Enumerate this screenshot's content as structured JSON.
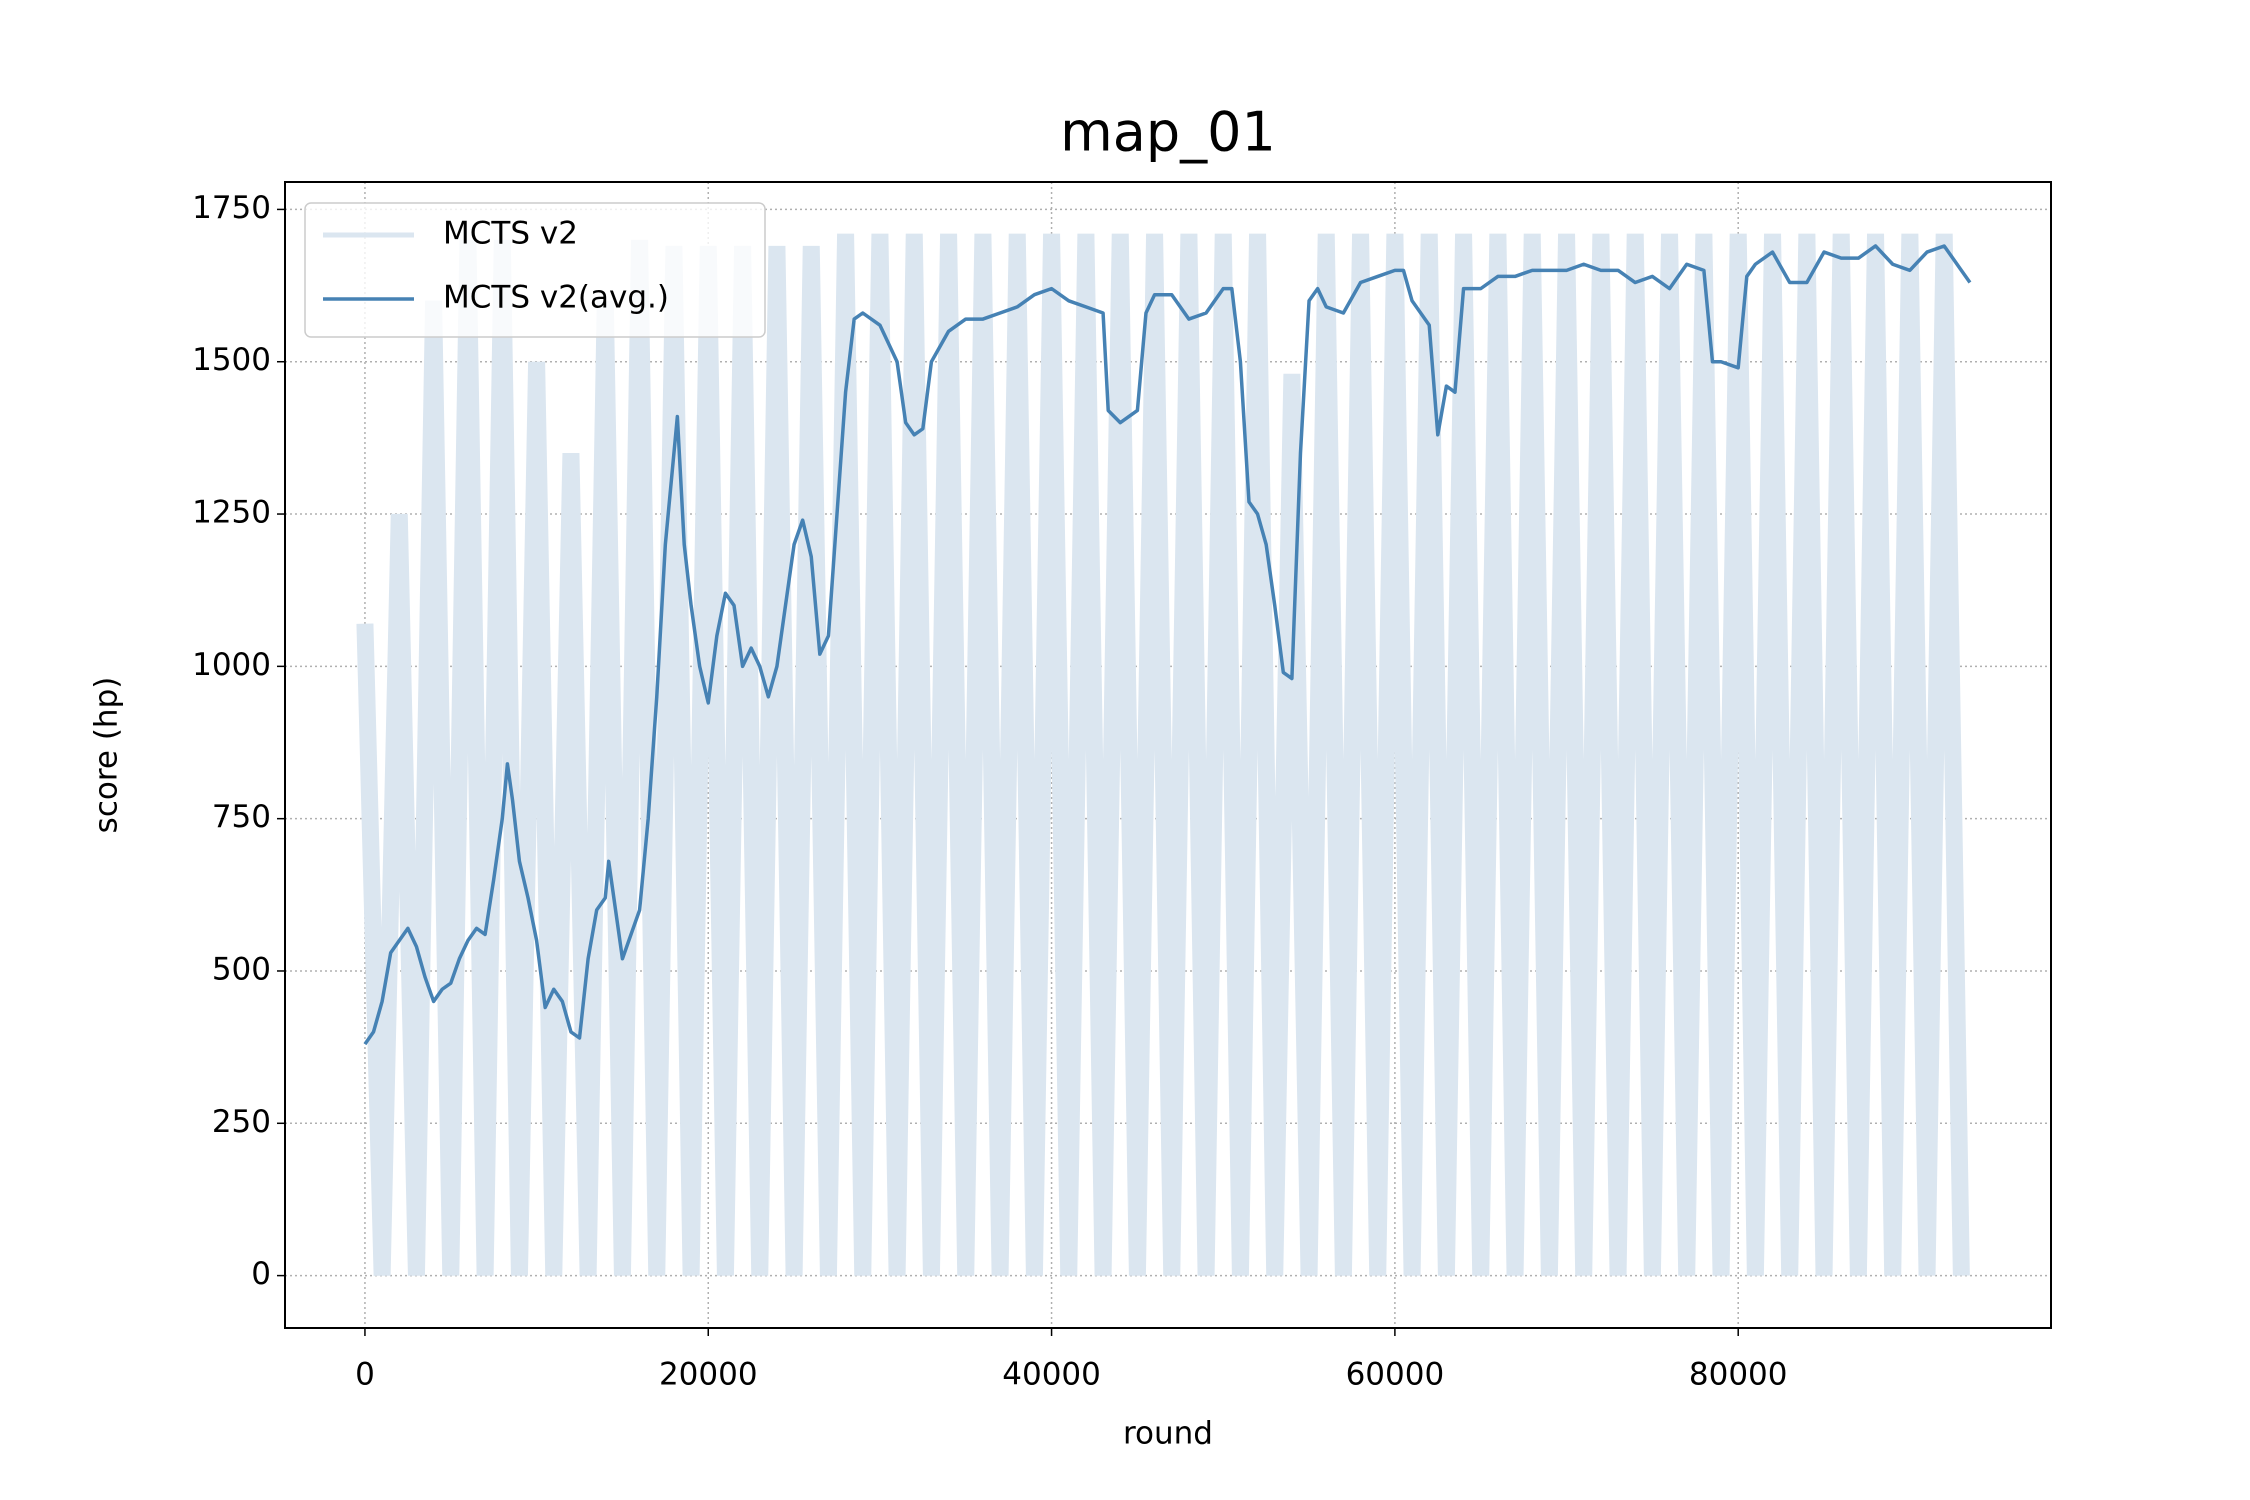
{
  "chart_data": {
    "type": "line",
    "title": "map_01",
    "title_color": "#0000ff",
    "x_label": "round",
    "y_label": "score (hp)",
    "xlim": [
      -4657,
      98222
    ],
    "ylim": [
      -86,
      1795
    ],
    "xticks": [
      0,
      20000,
      40000,
      60000,
      80000
    ],
    "yticks": [
      0,
      250,
      500,
      750,
      1000,
      1250,
      1500,
      1750
    ],
    "grid": true,
    "legend": "upper left",
    "series": [
      {
        "name": "MCTS v2",
        "color": "#dbe6f0",
        "x": [
          0,
          1000,
          2000,
          3000,
          4000,
          5000,
          6000,
          7000,
          8000,
          9000,
          10000,
          11000,
          12000,
          13000,
          14000,
          15000,
          16000,
          17000,
          18000,
          19000,
          20000,
          21000,
          22000,
          23000,
          24000,
          25000,
          26000,
          27000,
          28000,
          29000,
          30000,
          31000,
          32000,
          33000,
          34000,
          35000,
          36000,
          37000,
          38000,
          39000,
          40000,
          41000,
          42000,
          43000,
          44000,
          45000,
          46000,
          47000,
          48000,
          49000,
          50000,
          51000,
          52000,
          53000,
          54000,
          55000,
          56000,
          57000,
          58000,
          59000,
          60000,
          61000,
          62000,
          63000,
          64000,
          65000,
          66000,
          67000,
          68000,
          69000,
          70000,
          71000,
          72000,
          73000,
          74000,
          75000,
          76000,
          77000,
          78000,
          79000,
          80000,
          81000,
          82000,
          83000,
          84000,
          85000,
          86000,
          87000,
          88000,
          89000,
          90000,
          91000,
          92000,
          93000
        ],
        "values": [
          1070,
          0,
          1250,
          0,
          1600,
          0,
          1700,
          0,
          1700,
          0,
          1500,
          0,
          1350,
          0,
          1600,
          0,
          1700,
          0,
          1690,
          0,
          1690,
          0,
          1690,
          0,
          1690,
          0,
          1690,
          0,
          1710,
          0,
          1710,
          0,
          1710,
          0,
          1710,
          0,
          1710,
          0,
          1710,
          0,
          1710,
          0,
          1710,
          0,
          1710,
          0,
          1710,
          0,
          1710,
          0,
          1710,
          0,
          1710,
          0,
          1480,
          0,
          1710,
          0,
          1710,
          0,
          1710,
          0,
          1710,
          0,
          1710,
          0,
          1710,
          0,
          1710,
          0,
          1710,
          0,
          1710,
          0,
          1710,
          0,
          1710,
          0,
          1710,
          0,
          1710,
          0,
          1710,
          0,
          1710,
          0,
          1710,
          0,
          1710,
          0,
          1710,
          0,
          1710,
          0
        ]
      },
      {
        "name": "MCTS v2(avg.)",
        "color": "#4682b4",
        "x": [
          0,
          500,
          1000,
          1500,
          2000,
          2500,
          3000,
          3500,
          4000,
          4500,
          5000,
          5500,
          6000,
          6500,
          7000,
          7500,
          8000,
          8300,
          8600,
          9000,
          9500,
          10000,
          10500,
          11000,
          11500,
          12000,
          12500,
          13000,
          13500,
          14000,
          14200,
          14600,
          15000,
          15500,
          16000,
          16500,
          17000,
          17500,
          18000,
          18200,
          18600,
          19000,
          19500,
          20000,
          20500,
          21000,
          21500,
          22000,
          22500,
          23000,
          23500,
          24000,
          24500,
          25000,
          25500,
          26000,
          26500,
          27000,
          27500,
          28000,
          28500,
          29000,
          30000,
          31000,
          31500,
          32000,
          32500,
          33000,
          34000,
          35000,
          36000,
          37000,
          38000,
          39000,
          40000,
          41000,
          42000,
          43000,
          43300,
          44000,
          45000,
          45500,
          46000,
          47000,
          48000,
          49000,
          50000,
          50500,
          51000,
          51500,
          52000,
          52500,
          53000,
          53500,
          54000,
          54500,
          55000,
          55500,
          56000,
          57000,
          58000,
          59000,
          60000,
          60500,
          61000,
          62000,
          62500,
          63000,
          63500,
          64000,
          65000,
          66000,
          67000,
          68000,
          70000,
          71000,
          72000,
          73000,
          74000,
          75000,
          76000,
          77000,
          78000,
          78500,
          79000,
          80000,
          80500,
          81000,
          82000,
          83000,
          84000,
          85000,
          86000,
          87000,
          88000,
          89000,
          90000,
          91000,
          92000,
          93000,
          93500
        ],
        "values": [
          380,
          400,
          450,
          530,
          550,
          570,
          540,
          490,
          450,
          470,
          480,
          520,
          550,
          570,
          560,
          650,
          750,
          840,
          780,
          680,
          620,
          550,
          440,
          470,
          450,
          400,
          390,
          520,
          600,
          620,
          680,
          600,
          520,
          560,
          600,
          750,
          950,
          1200,
          1350,
          1410,
          1200,
          1100,
          1000,
          940,
          1050,
          1120,
          1100,
          1000,
          1030,
          1000,
          950,
          1000,
          1100,
          1200,
          1240,
          1180,
          1020,
          1050,
          1250,
          1450,
          1570,
          1580,
          1560,
          1500,
          1400,
          1380,
          1390,
          1500,
          1550,
          1570,
          1570,
          1580,
          1590,
          1610,
          1620,
          1600,
          1590,
          1580,
          1420,
          1400,
          1420,
          1580,
          1610,
          1610,
          1570,
          1580,
          1620,
          1620,
          1500,
          1270,
          1250,
          1200,
          1100,
          990,
          980,
          1350,
          1600,
          1620,
          1590,
          1580,
          1630,
          1640,
          1650,
          1650,
          1600,
          1560,
          1380,
          1460,
          1450,
          1620,
          1620,
          1640,
          1640,
          1650,
          1650,
          1660,
          1650,
          1650,
          1630,
          1640,
          1620,
          1660,
          1650,
          1500,
          1500,
          1490,
          1640,
          1660,
          1680,
          1630,
          1630,
          1680,
          1670,
          1670,
          1690,
          1660,
          1650,
          1680,
          1690,
          1650,
          1630
        ]
      }
    ]
  }
}
